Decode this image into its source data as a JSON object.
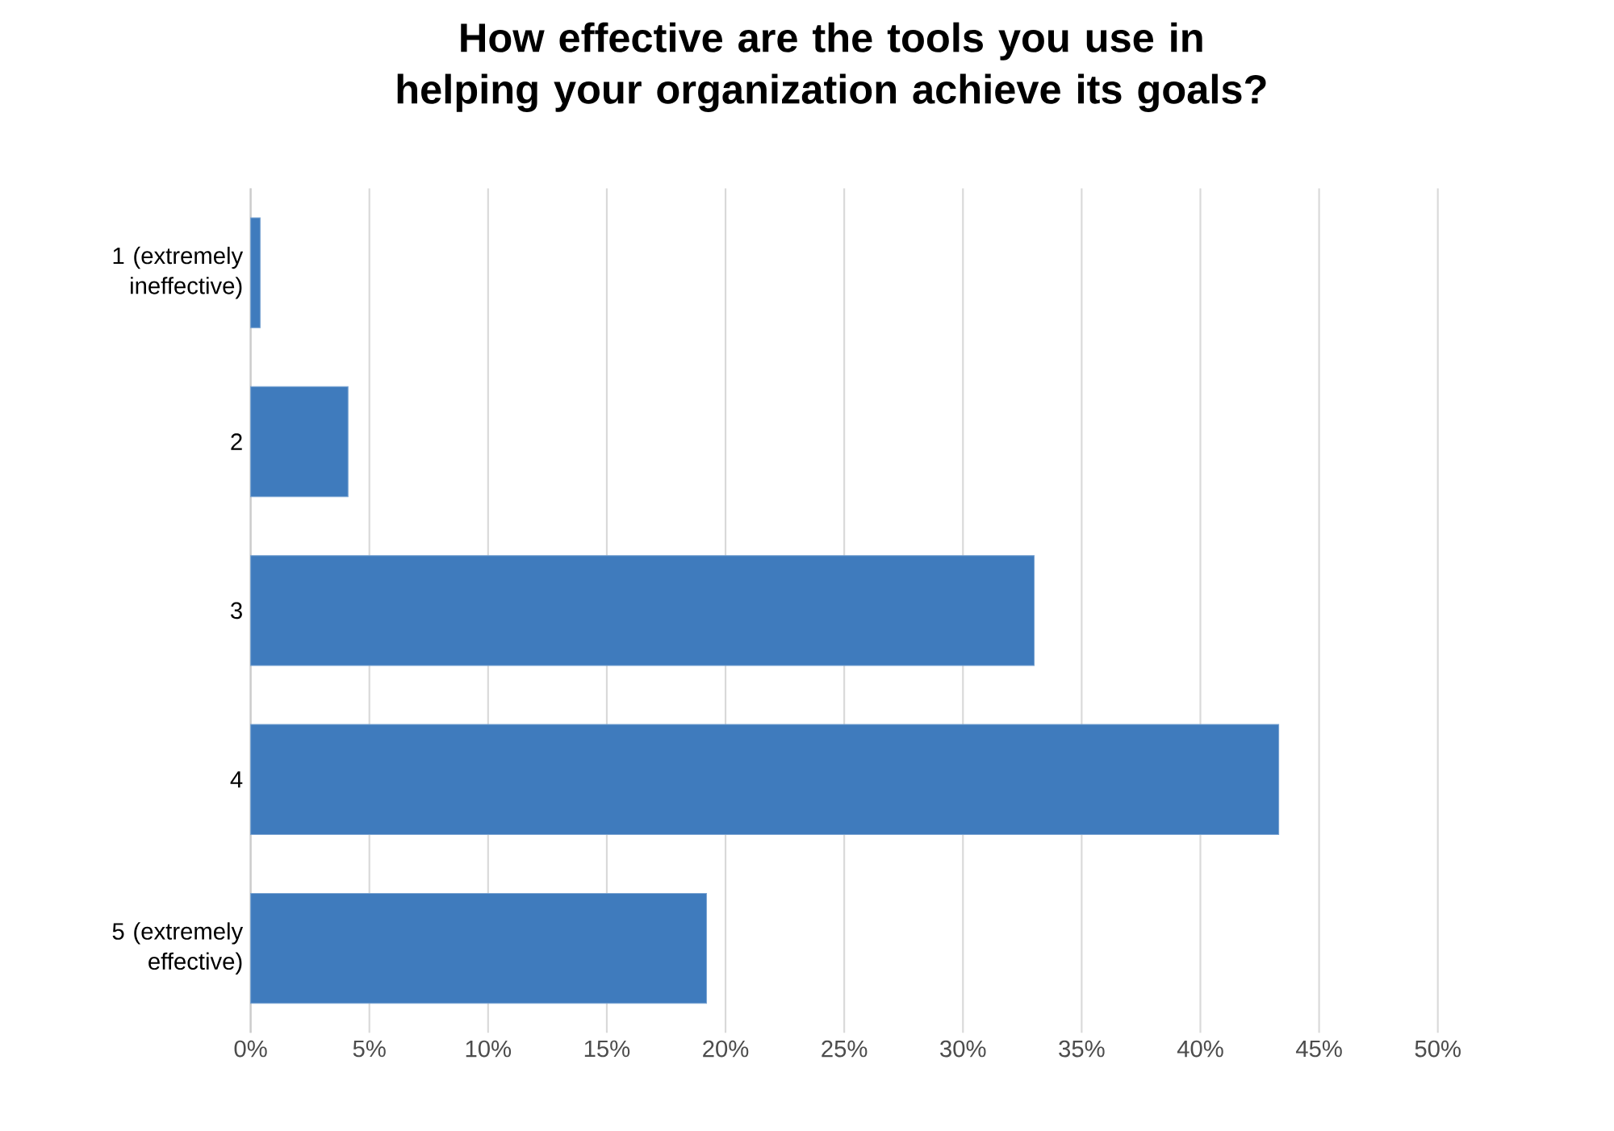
{
  "chart_data": {
    "type": "bar",
    "orientation": "horizontal",
    "title": "How effective are the tools you use in helping your organization achieve its goals?",
    "categories": [
      "1 (extremely ineffective)",
      "2",
      "3",
      "4",
      "5 (extremely effective)"
    ],
    "values": [
      0.4,
      4.1,
      33.0,
      43.3,
      19.2
    ],
    "color": "#3f7bbd",
    "xlim": [
      0,
      50
    ],
    "xticks": [
      {
        "value": 0,
        "label": "0%"
      },
      {
        "value": 5,
        "label": "5%"
      },
      {
        "value": 10,
        "label": "10%"
      },
      {
        "value": 15,
        "label": "15%"
      },
      {
        "value": 20,
        "label": "20%"
      },
      {
        "value": 25,
        "label": "25%"
      },
      {
        "value": 30,
        "label": "30%"
      },
      {
        "value": 35,
        "label": "35%"
      },
      {
        "value": 40,
        "label": "40%"
      },
      {
        "value": 45,
        "label": "45%"
      },
      {
        "value": 50,
        "label": "50%"
      }
    ],
    "grid": "x"
  }
}
